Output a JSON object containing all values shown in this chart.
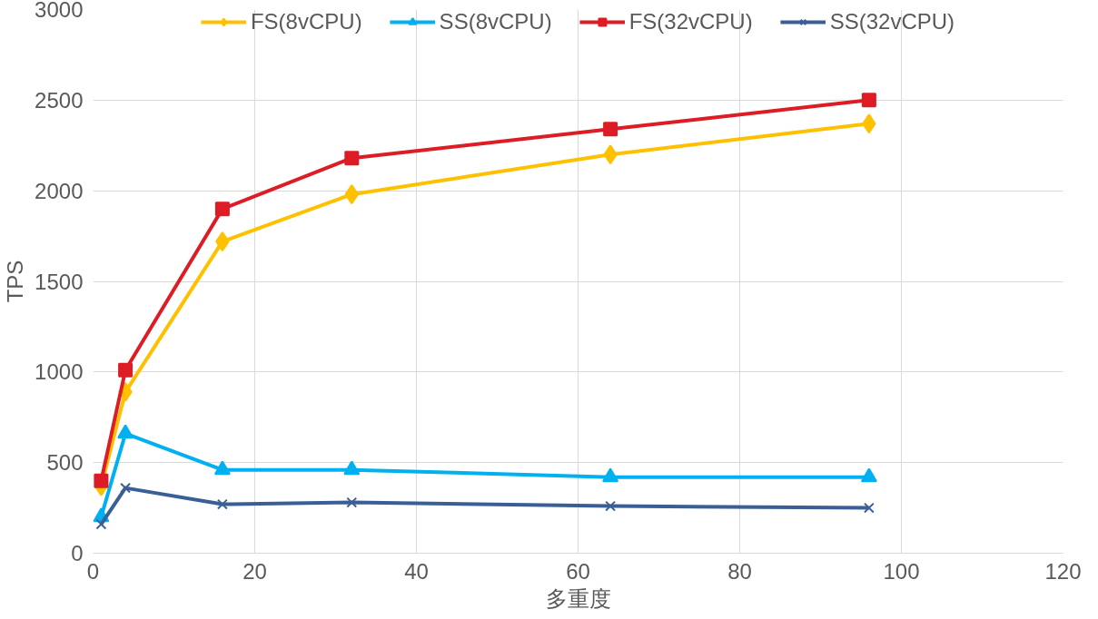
{
  "chart_data": {
    "type": "line",
    "xlabel": "多重度",
    "ylabel": "TPS",
    "x": [
      1,
      4,
      16,
      32,
      64,
      96
    ],
    "series": [
      {
        "name": "FS(8vCPU)",
        "color": "#ffc000",
        "marker": "diamond",
        "values": [
          370,
          890,
          1720,
          1980,
          2200,
          2370
        ]
      },
      {
        "name": "SS(8vCPU)",
        "color": "#00b0f0",
        "marker": "triangle",
        "values": [
          200,
          660,
          460,
          460,
          420,
          420
        ]
      },
      {
        "name": "FS(32vCPU)",
        "color": "#dd1c25",
        "marker": "square",
        "values": [
          400,
          1010,
          1900,
          2180,
          2340,
          2500
        ]
      },
      {
        "name": "SS(32vCPU)",
        "color": "#3a5f96",
        "marker": "cross",
        "values": [
          160,
          360,
          270,
          280,
          260,
          250
        ]
      }
    ],
    "xlim": [
      0,
      120
    ],
    "xticks": [
      0,
      20,
      40,
      60,
      80,
      100,
      120
    ],
    "ylim": [
      0,
      3000
    ],
    "yticks": [
      0,
      500,
      1000,
      1500,
      2000,
      2500,
      3000
    ],
    "grid": true,
    "legend": "top",
    "line_style": "solid"
  }
}
